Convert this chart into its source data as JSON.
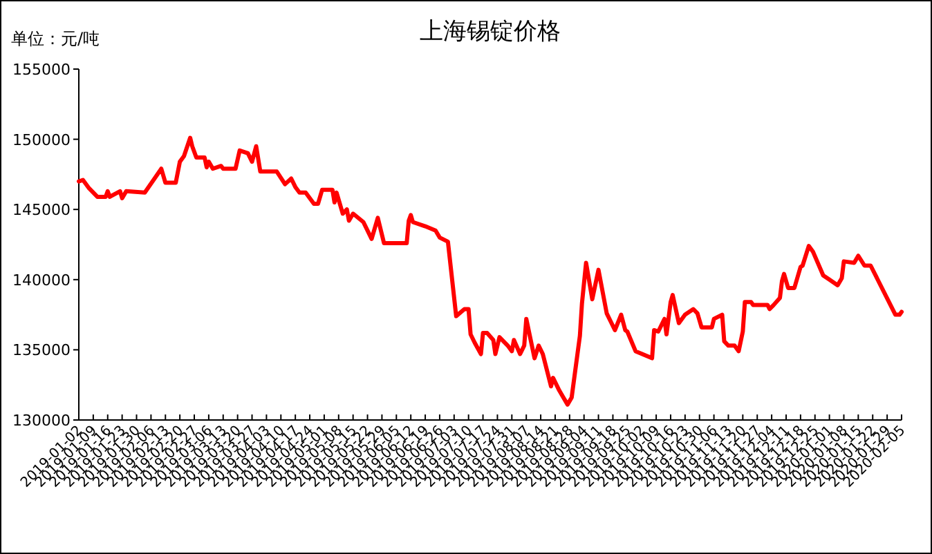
{
  "chart_data": {
    "type": "line",
    "title": "上海锡锭价格",
    "ylabel": "单位：元/吨",
    "color": "#ff0000",
    "x": [
      "2019-01-02",
      "2019-01-04",
      "2019-01-07",
      "2019-01-11",
      "2019-01-15",
      "2019-01-16",
      "2019-01-17",
      "2019-01-22",
      "2019-01-23",
      "2019-01-25",
      "2019-02-03",
      "2019-02-11",
      "2019-02-13",
      "2019-02-18",
      "2019-02-20",
      "2019-02-22",
      "2019-02-25",
      "2019-02-26",
      "2019-02-28",
      "2019-03-04",
      "2019-03-05",
      "2019-03-06",
      "2019-03-08",
      "2019-03-12",
      "2019-03-13",
      "2019-03-19",
      "2019-03-21",
      "2019-03-25",
      "2019-03-27",
      "2019-03-29",
      "2019-03-31",
      "2019-04-08",
      "2019-04-12",
      "2019-04-15",
      "2019-04-17",
      "2019-04-19",
      "2019-04-22",
      "2019-04-26",
      "2019-04-28",
      "2019-04-30",
      "2019-05-05",
      "2019-05-06",
      "2019-05-07",
      "2019-05-10",
      "2019-05-12",
      "2019-05-13",
      "2019-05-15",
      "2019-05-20",
      "2019-05-24",
      "2019-05-27",
      "2019-05-30",
      "2019-06-10",
      "2019-06-11",
      "2019-06-12",
      "2019-06-13",
      "2019-06-19",
      "2019-06-24",
      "2019-06-26",
      "2019-06-30",
      "2019-07-04",
      "2019-07-08",
      "2019-07-10",
      "2019-07-11",
      "2019-07-13",
      "2019-07-16",
      "2019-07-17",
      "2019-07-19",
      "2019-07-22",
      "2019-07-23",
      "2019-07-25",
      "2019-07-29",
      "2019-07-31",
      "2019-08-01",
      "2019-08-04",
      "2019-08-06",
      "2019-08-07",
      "2019-08-11",
      "2019-08-13",
      "2019-08-15",
      "2019-08-19",
      "2019-08-20",
      "2019-08-23",
      "2019-08-25",
      "2019-08-27",
      "2019-08-29",
      "2019-09-02",
      "2019-09-03",
      "2019-09-05",
      "2019-09-08",
      "2019-09-11",
      "2019-09-15",
      "2019-09-17",
      "2019-09-19",
      "2019-09-22",
      "2019-09-24",
      "2019-09-25",
      "2019-09-29",
      "2019-10-07",
      "2019-10-08",
      "2019-10-10",
      "2019-10-13",
      "2019-10-14",
      "2019-10-16",
      "2019-10-17",
      "2019-10-20",
      "2019-10-23",
      "2019-10-27",
      "2019-10-29",
      "2019-10-31",
      "2019-11-05",
      "2019-11-06",
      "2019-11-10",
      "2019-11-11",
      "2019-11-13",
      "2019-11-16",
      "2019-11-18",
      "2019-11-20",
      "2019-11-21",
      "2019-11-24",
      "2019-11-25",
      "2019-12-02",
      "2019-12-03",
      "2019-12-05",
      "2019-12-08",
      "2019-12-09",
      "2019-12-10",
      "2019-12-12",
      "2019-12-15",
      "2019-12-18",
      "2019-12-19",
      "2019-12-22",
      "2019-12-24",
      "2019-12-29",
      "2020-01-01",
      "2020-01-05",
      "2020-01-07",
      "2020-01-08",
      "2020-01-13",
      "2020-01-15",
      "2020-01-18",
      "2020-01-21",
      "2020-02-02",
      "2020-02-04",
      "2020-02-05"
    ],
    "values": [
      147000,
      147100,
      146500,
      145900,
      145900,
      146300,
      145900,
      146300,
      145800,
      146300,
      146200,
      147900,
      146900,
      146900,
      148400,
      148800,
      150100,
      149500,
      148700,
      148700,
      148000,
      148400,
      147900,
      148100,
      147900,
      147900,
      149200,
      149000,
      148400,
      149500,
      147700,
      147700,
      146800,
      147200,
      146600,
      146200,
      146200,
      145400,
      145400,
      146400,
      146400,
      145500,
      146200,
      144700,
      145000,
      144200,
      144700,
      144100,
      142900,
      144400,
      142600,
      142600,
      144200,
      144600,
      144100,
      143800,
      143500,
      143000,
      142700,
      137400,
      137900,
      137900,
      136100,
      135500,
      134700,
      136200,
      136200,
      135700,
      134700,
      135900,
      135300,
      134900,
      135700,
      134700,
      135300,
      137200,
      134400,
      135300,
      134700,
      132400,
      133000,
      132100,
      131600,
      131100,
      131600,
      136000,
      138300,
      141200,
      138600,
      140700,
      137600,
      137000,
      136400,
      137500,
      136400,
      136300,
      134900,
      134400,
      136400,
      136300,
      137200,
      136100,
      138400,
      138900,
      136900,
      137500,
      137900,
      137600,
      136600,
      136600,
      137200,
      137500,
      135600,
      135300,
      135300,
      134900,
      136300,
      138400,
      138400,
      138200,
      138200,
      137900,
      138200,
      138700,
      139900,
      140400,
      139400,
      139400,
      140900,
      141000,
      142400,
      142000,
      140300,
      140000,
      139600,
      140100,
      141300,
      141200,
      141700,
      141000,
      141000,
      137500,
      137500,
      137700
    ],
    "xlim": [
      "2019-01-02",
      "2020-02-05"
    ],
    "ylim": [
      130000,
      155000
    ],
    "yticks": [
      130000,
      135000,
      140000,
      145000,
      150000,
      155000
    ],
    "xticks": [
      "2019-01-02",
      "2019-01-09",
      "2019-01-16",
      "2019-01-23",
      "2019-01-30",
      "2019-02-06",
      "2019-02-13",
      "2019-02-20",
      "2019-02-27",
      "2019-03-06",
      "2019-03-13",
      "2019-03-20",
      "2019-03-27",
      "2019-04-03",
      "2019-04-10",
      "2019-04-17",
      "2019-04-24",
      "2019-05-01",
      "2019-05-08",
      "2019-05-15",
      "2019-05-22",
      "2019-05-29",
      "2019-06-05",
      "2019-06-12",
      "2019-06-19",
      "2019-06-26",
      "2019-07-03",
      "2019-07-10",
      "2019-07-17",
      "2019-07-24",
      "2019-07-31",
      "2019-08-07",
      "2019-08-14",
      "2019-08-21",
      "2019-08-28",
      "2019-09-04",
      "2019-09-11",
      "2019-09-18",
      "2019-09-25",
      "2019-10-02",
      "2019-10-09",
      "2019-10-16",
      "2019-10-23",
      "2019-10-30",
      "2019-11-06",
      "2019-11-13",
      "2019-11-20",
      "2019-11-27",
      "2019-12-04",
      "2019-12-11",
      "2019-12-18",
      "2019-12-25",
      "2020-01-01",
      "2020-01-08",
      "2020-01-15",
      "2020-01-22",
      "2020-01-29",
      "2020-02-05"
    ]
  }
}
